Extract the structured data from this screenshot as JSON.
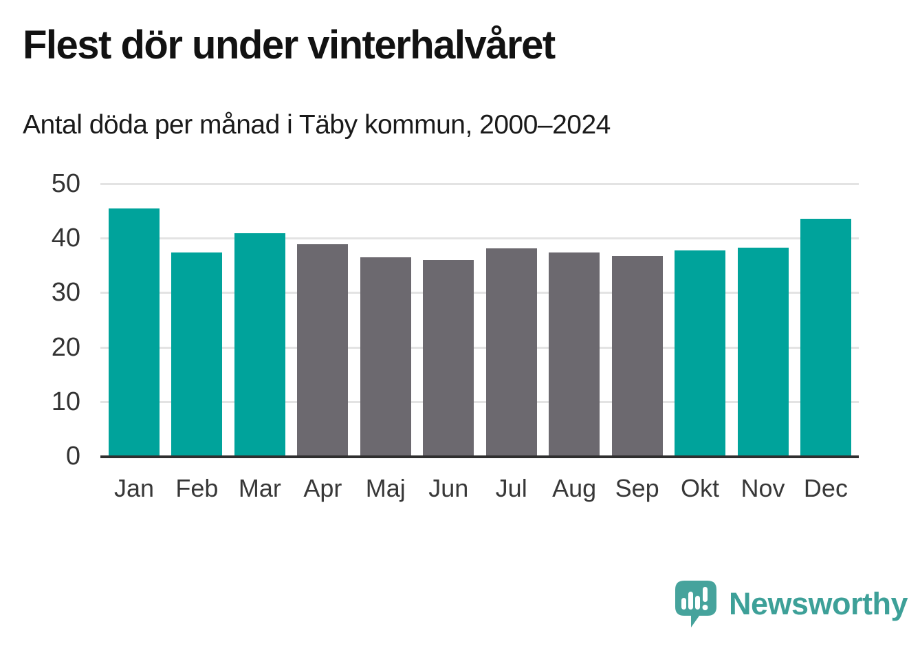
{
  "header": {
    "title": "Flest dör under vinterhalvåret",
    "subtitle": "Antal döda per månad i Täby kommun, 2000–2024"
  },
  "chart_data": {
    "type": "bar",
    "title": "Flest dör under vinterhalvåret",
    "subtitle": "Antal döda per månad i Täby kommun, 2000–2024",
    "categories": [
      "Jan",
      "Feb",
      "Mar",
      "Apr",
      "Maj",
      "Jun",
      "Jul",
      "Aug",
      "Sep",
      "Okt",
      "Nov",
      "Dec"
    ],
    "values": [
      45.5,
      37.4,
      40.9,
      38.9,
      36.5,
      36.0,
      38.1,
      37.4,
      36.8,
      37.8,
      38.3,
      43.5
    ],
    "bar_color_keys": [
      "teal",
      "teal",
      "teal",
      "gray",
      "gray",
      "gray",
      "gray",
      "gray",
      "gray",
      "teal",
      "teal",
      "teal"
    ],
    "colors": {
      "teal": "#00a39b",
      "gray": "#6c696f"
    },
    "grid_color": "#e3e3e3",
    "axis_color": "#2f2f2f",
    "ylim": [
      0,
      50
    ],
    "yticks": [
      0,
      10,
      20,
      30,
      40,
      50
    ],
    "grid": true,
    "legend": "none",
    "xlabel": "",
    "ylabel": ""
  },
  "footer": {
    "brand": "Newsworthy",
    "brand_color": "#3da098",
    "logo_bubble_color": "#46a39c",
    "logo_icon": "newsworthy-speech-bubble-chart-icon"
  }
}
